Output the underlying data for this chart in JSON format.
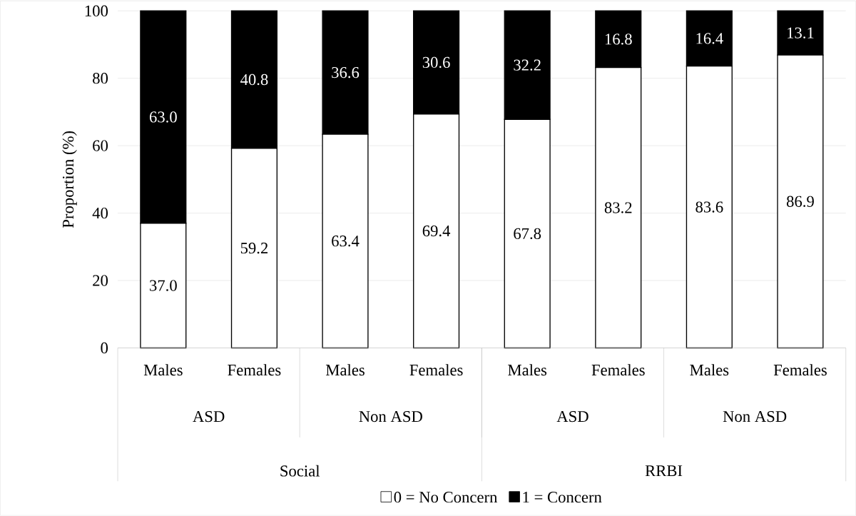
{
  "chart_data": {
    "type": "bar",
    "stacked": true,
    "ylabel": "Proportion (%)",
    "categories": [
      "Males",
      "Females",
      "Males",
      "Females",
      "Males",
      "Females",
      "Males",
      "Females"
    ],
    "series": [
      {
        "name": "0 = No Concern",
        "color": "#ffffff",
        "values": [
          37.0,
          59.2,
          63.4,
          69.4,
          67.8,
          83.2,
          83.6,
          86.9
        ],
        "value_labels": [
          "37.0",
          "59.2",
          "63.4",
          "69.4",
          "67.8",
          "83.2",
          "83.6",
          "86.9"
        ]
      },
      {
        "name": "1 = Concern",
        "color": "#000000",
        "values": [
          63.0,
          40.8,
          36.6,
          30.6,
          32.2,
          16.8,
          16.4,
          13.1
        ],
        "value_labels": [
          "63.0",
          "40.8",
          "36.6",
          "30.6",
          "32.2",
          "16.8",
          "16.4",
          "13.1"
        ]
      }
    ],
    "annotations": [
      "ASD",
      "Non ASD",
      "ASD",
      "Non ASD",
      "Social",
      "RRBI"
    ],
    "ylim": [
      0,
      100
    ],
    "yticks": [
      0,
      20,
      40,
      60,
      80,
      100
    ],
    "grid": "y",
    "legend": "bottom"
  }
}
